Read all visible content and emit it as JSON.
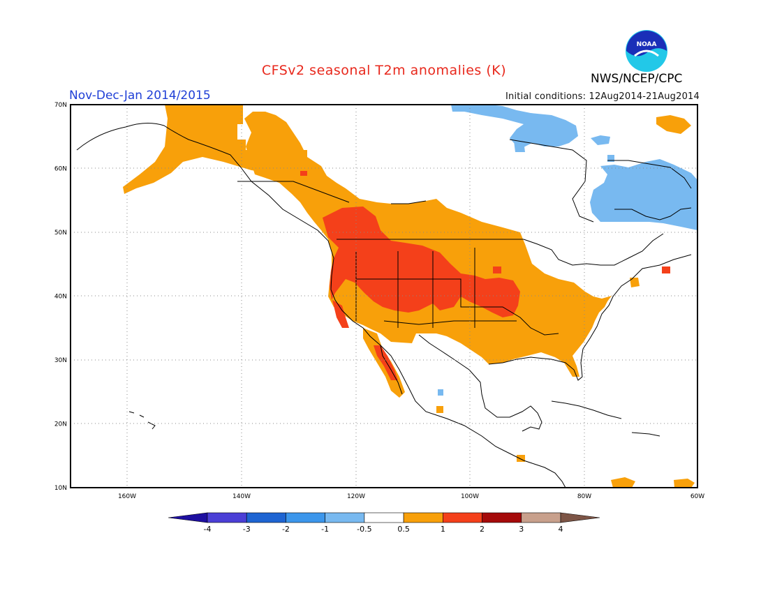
{
  "title": "CFSv2 seasonal T2m anomalies (K)",
  "period": "Nov-Dec-Jan 2014/2015",
  "initial_conditions": "Initial conditions: 12Aug2014-21Aug2014",
  "agency": "NWS/NCEP/CPC",
  "logo_text": "NOAA",
  "lat_labels": [
    "70N",
    "60N",
    "50N",
    "40N",
    "30N",
    "20N",
    "10N"
  ],
  "lon_labels": [
    "160W",
    "140W",
    "120W",
    "100W",
    "80W",
    "60W"
  ],
  "colorbar": {
    "colors": [
      "#1e0fa0",
      "#4b3fd6",
      "#1e64d2",
      "#3c96eb",
      "#78b9f0",
      "#ffffff",
      "#f8a00a",
      "#f4401a",
      "#a50a0a",
      "#c8a08c",
      "#7d5546"
    ],
    "labels": [
      "-4",
      "-3",
      "-2",
      "-1",
      "-0.5",
      "0.5",
      "1",
      "2",
      "3",
      "4"
    ]
  },
  "colors": {
    "warm_1": "#f8a00a",
    "warm_2": "#f4401a",
    "cool_1": "#78b9f0",
    "title": "#e8281c",
    "period": "#1f3fd6"
  }
}
